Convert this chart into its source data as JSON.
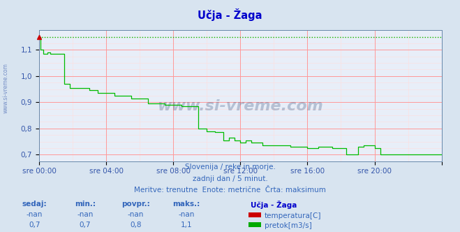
{
  "title": "Učja - Žaga",
  "subtitle1": "Slovenija / reke in morje.",
  "subtitle2": "zadnji dan / 5 minut.",
  "subtitle3": "Meritve: trenutne  Enote: metrične  Črta: maksimum",
  "xlabel_ticks": [
    "sre 00:00",
    "sre 04:00",
    "sre 08:00",
    "sre 12:00",
    "sre 16:00",
    "sre 20:00"
  ],
  "ylabel_ticks": [
    "0,7",
    "0,8",
    "0,9",
    "1,0",
    "1,1"
  ],
  "ylim": [
    0.675,
    1.175
  ],
  "xlim": [
    0,
    288
  ],
  "background_color": "#d8e4f0",
  "plot_bg_color": "#e8eef8",
  "grid_color_major": "#ff9999",
  "grid_color_minor": "#ffdddd",
  "title_color": "#0000cc",
  "axis_color": "#3355aa",
  "text_color": "#3366bb",
  "watermark": "www.si-vreme.com",
  "watermark_color": "#1a3a6a",
  "line_color": "#00bb00",
  "max_line_value": 1.15,
  "legend_title": "Učja - Žaga",
  "legend_items": [
    {
      "label": "temperatura[C]",
      "color": "#cc0000"
    },
    {
      "label": "pretok[m3/s]",
      "color": "#00aa00"
    }
  ],
  "table_headers": [
    "sedaj:",
    "min.:",
    "povpr.:",
    "maks.:"
  ],
  "table_row1": [
    "-nan",
    "-nan",
    "-nan",
    "-nan"
  ],
  "table_row2": [
    "0,7",
    "0,7",
    "0,8",
    "1,1"
  ],
  "flow_data_x": [
    0,
    1,
    1,
    3,
    3,
    6,
    6,
    8,
    8,
    18,
    18,
    22,
    22,
    36,
    36,
    42,
    42,
    54,
    54,
    66,
    66,
    78,
    78,
    90,
    90,
    102,
    102,
    114,
    114,
    120,
    120,
    126,
    126,
    132,
    132,
    136,
    136,
    140,
    140,
    144,
    144,
    148,
    148,
    152,
    152,
    160,
    160,
    180,
    180,
    192,
    192,
    200,
    200,
    210,
    210,
    220,
    220,
    228,
    228,
    232,
    232,
    240,
    240,
    244,
    244,
    252,
    252,
    288
  ],
  "flow_data_y": [
    1.15,
    1.15,
    1.1,
    1.1,
    1.085,
    1.085,
    1.09,
    1.09,
    1.085,
    1.085,
    0.97,
    0.97,
    0.955,
    0.955,
    0.945,
    0.945,
    0.935,
    0.935,
    0.925,
    0.925,
    0.915,
    0.915,
    0.895,
    0.895,
    0.89,
    0.89,
    0.885,
    0.885,
    0.8,
    0.8,
    0.79,
    0.79,
    0.785,
    0.785,
    0.755,
    0.755,
    0.765,
    0.765,
    0.755,
    0.755,
    0.745,
    0.745,
    0.755,
    0.755,
    0.745,
    0.745,
    0.735,
    0.735,
    0.73,
    0.73,
    0.725,
    0.725,
    0.73,
    0.73,
    0.725,
    0.725,
    0.7,
    0.7,
    0.73,
    0.73,
    0.735,
    0.735,
    0.725,
    0.725,
    0.7,
    0.7,
    0.7,
    0.7
  ]
}
